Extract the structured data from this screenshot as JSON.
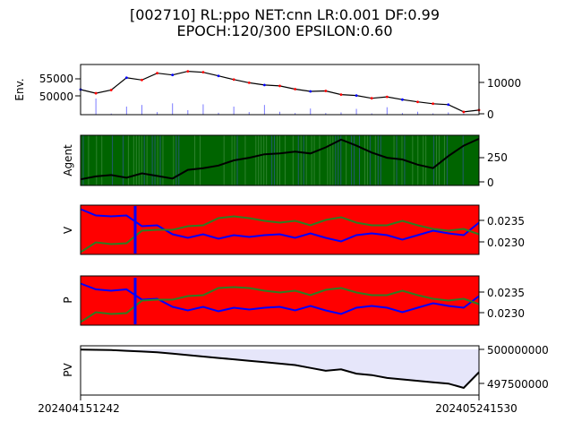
{
  "figure": {
    "title_line1": "[002710] RL:ppo NET:cnn LR:0.001 DF:0.99",
    "title_line2": "EPOCH:120/300 EPSILON:0.60",
    "x_ticks": [
      "202404151242",
      "202405241530"
    ]
  },
  "chart_data": [
    {
      "type": "line",
      "ylabel": "Env.",
      "left_ticks": [
        "55000",
        "50000"
      ],
      "right_ticks": [
        "10000",
        "0"
      ],
      "left_ylim": [
        46500,
        57500
      ],
      "right_ylim": [
        0,
        15500
      ],
      "series": [
        {
          "name": "",
          "role": "price",
          "color": "#000000",
          "values": [
            52000,
            51200,
            51900,
            54600,
            54100,
            55600,
            55200,
            56000,
            55800,
            55000,
            54200,
            53500,
            53000,
            52800,
            52100,
            51600,
            51700,
            50900,
            50700,
            50100,
            50400,
            49800,
            49300,
            48900,
            48700,
            47100,
            47500
          ]
        }
      ],
      "volume": [
        600,
        5000,
        350,
        2500,
        3000,
        800,
        3500,
        1400,
        3200,
        600,
        2500,
        800,
        3000,
        900,
        500,
        1900,
        500,
        700,
        1800,
        400,
        2300,
        500,
        900,
        400,
        700,
        300,
        2600
      ],
      "markers": {
        "buy_color": "#ff0000",
        "sell_color": "#0000ff"
      }
    },
    {
      "type": "line",
      "ylabel": "Agent",
      "right_ticks": [
        "250",
        "0"
      ],
      "ylim": [
        -60,
        520
      ],
      "background_color": "#006400",
      "series": [
        {
          "name": "",
          "color": "#000000",
          "values": [
            10,
            45,
            60,
            30,
            80,
            50,
            20,
            120,
            140,
            170,
            230,
            260,
            300,
            310,
            330,
            310,
            380,
            470,
            400,
            320,
            260,
            240,
            180,
            140,
            280,
            400,
            480
          ]
        }
      ]
    },
    {
      "type": "line",
      "ylabel": "V",
      "right_ticks": [
        "0.0235",
        "0.0230"
      ],
      "ylim": [
        0.02275,
        0.02385
      ],
      "background_color": "#ff0000",
      "series": [
        {
          "name": "",
          "color": "#0000ff",
          "values": [
            0.02376,
            0.02362,
            0.0236,
            0.02362,
            0.02338,
            0.0234,
            0.0232,
            0.02312,
            0.0232,
            0.0231,
            0.02318,
            0.02314,
            0.02318,
            0.0232,
            0.02312,
            0.02322,
            0.02312,
            0.02304,
            0.02318,
            0.02322,
            0.02318,
            0.02308,
            0.02318,
            0.02328,
            0.02322,
            0.02318,
            0.02346
          ]
        },
        {
          "name": "",
          "color": "#2e7d22",
          "values": [
            0.0228,
            0.02302,
            0.02298,
            0.023,
            0.02328,
            0.0233,
            0.0233,
            0.02338,
            0.0234,
            0.02356,
            0.0236,
            0.02356,
            0.0235,
            0.02346,
            0.0235,
            0.0234,
            0.02352,
            0.02358,
            0.02346,
            0.0234,
            0.0234,
            0.0235,
            0.0234,
            0.02332,
            0.02328,
            0.02332,
            0.0232
          ]
        }
      ]
    },
    {
      "type": "line",
      "ylabel": "P",
      "right_ticks": [
        "0.0235",
        "0.0230"
      ],
      "ylim": [
        0.02275,
        0.02385
      ],
      "background_color": "#ff0000",
      "series": [
        {
          "name": "",
          "color": "#0000ff",
          "values": [
            0.02368,
            0.02355,
            0.02352,
            0.02355,
            0.02332,
            0.02334,
            0.02316,
            0.02308,
            0.02316,
            0.02306,
            0.02314,
            0.0231,
            0.02314,
            0.02316,
            0.02308,
            0.02318,
            0.02308,
            0.023,
            0.02314,
            0.02318,
            0.02314,
            0.02304,
            0.02314,
            0.02324,
            0.02318,
            0.02314,
            0.0234
          ]
        },
        {
          "name": "",
          "color": "#2e7d22",
          "values": [
            0.02282,
            0.02304,
            0.023,
            0.02302,
            0.0233,
            0.02332,
            0.02332,
            0.0234,
            0.02342,
            0.02358,
            0.0236,
            0.02358,
            0.02352,
            0.02348,
            0.02352,
            0.02342,
            0.02354,
            0.02358,
            0.02348,
            0.02342,
            0.02342,
            0.02352,
            0.02342,
            0.02334,
            0.0233,
            0.02334,
            0.02322
          ]
        }
      ]
    },
    {
      "type": "area",
      "ylabel": "PV",
      "right_ticks": [
        "500000000",
        "497500000"
      ],
      "ylim": [
        496800000,
        500250000
      ],
      "fill_color": "#e6e6fa",
      "baseline": 500000000,
      "series": [
        {
          "name": "",
          "color": "#000000",
          "values": [
            499980000,
            499970000,
            499950000,
            499900000,
            499850000,
            499800000,
            499700000,
            499600000,
            499500000,
            499400000,
            499300000,
            499200000,
            499100000,
            499000000,
            498900000,
            498700000,
            498500000,
            498600000,
            498300000,
            498200000,
            498000000,
            497900000,
            497800000,
            497700000,
            497600000,
            497300000,
            498400000
          ]
        }
      ]
    }
  ]
}
